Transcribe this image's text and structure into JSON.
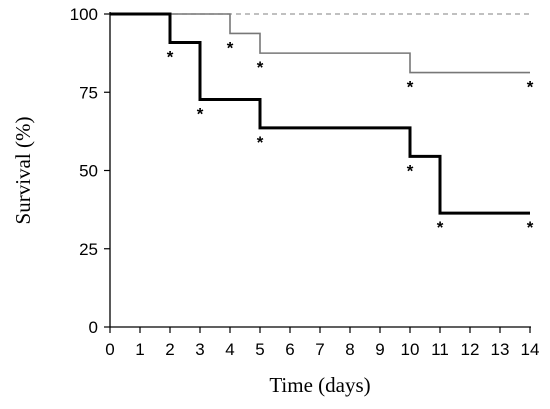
{
  "chart_data": {
    "type": "line",
    "title": "",
    "xlabel": "Time (days)",
    "ylabel": "Survival (%)",
    "xlim": [
      0,
      14
    ],
    "ylim": [
      0,
      100
    ],
    "xticks": [
      0,
      1,
      2,
      3,
      4,
      5,
      6,
      7,
      8,
      9,
      10,
      11,
      12,
      13,
      14
    ],
    "yticks": [
      0,
      25,
      50,
      75,
      100
    ],
    "grid": false,
    "legend": "none",
    "step": true,
    "series": [
      {
        "style": "dashed",
        "color": "#9a9a9a",
        "x": [
          0,
          14
        ],
        "y": [
          100,
          100
        ],
        "censored": []
      },
      {
        "style": "thin",
        "color": "#777777",
        "x": [
          0,
          4,
          5,
          10,
          14
        ],
        "y": [
          100,
          93.8,
          87.5,
          81.3,
          81.3
        ],
        "censored": [
          {
            "x": 4,
            "y": 93.8
          },
          {
            "x": 5,
            "y": 87.5
          },
          {
            "x": 10,
            "y": 81.3
          },
          {
            "x": 14,
            "y": 81.3
          }
        ]
      },
      {
        "style": "thick",
        "color": "#000000",
        "x": [
          0,
          2,
          3,
          5,
          10,
          11,
          14
        ],
        "y": [
          100,
          90.9,
          72.7,
          63.6,
          54.5,
          36.4,
          36.4
        ],
        "censored": [
          {
            "x": 2,
            "y": 90.9
          },
          {
            "x": 3,
            "y": 72.7
          },
          {
            "x": 5,
            "y": 63.6
          },
          {
            "x": 10,
            "y": 54.5
          },
          {
            "x": 11,
            "y": 36.4
          },
          {
            "x": 14,
            "y": 36.4
          }
        ]
      }
    ],
    "censor_marker": "*"
  }
}
